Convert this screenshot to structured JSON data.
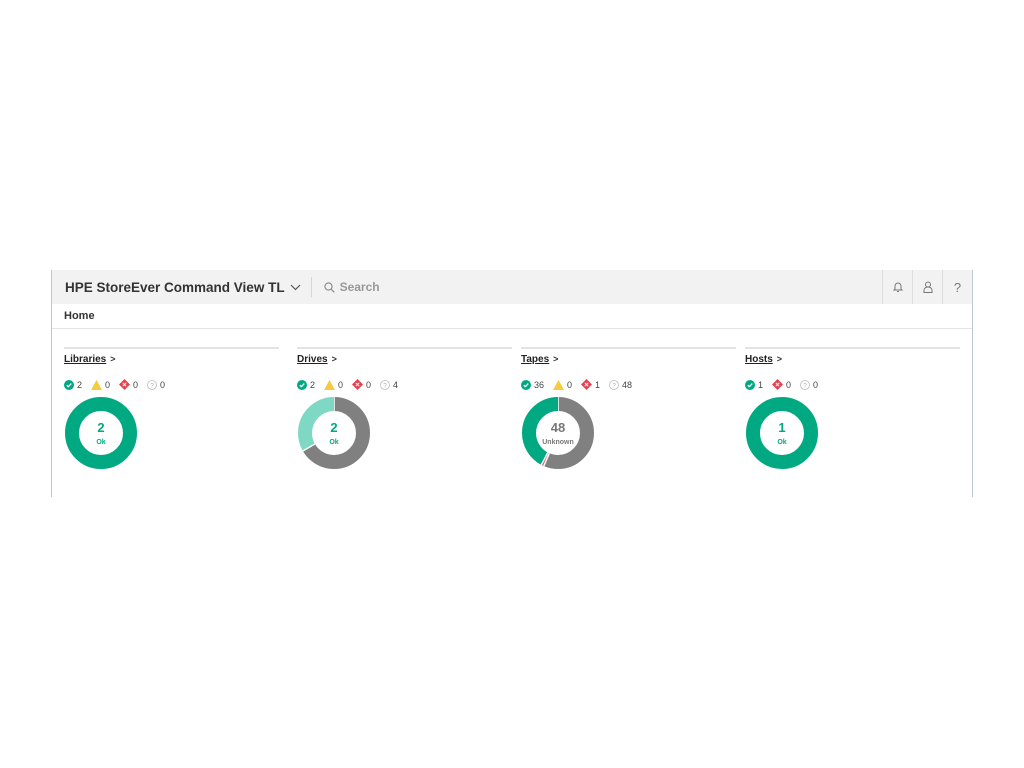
{
  "header": {
    "title": "HPE StoreEver Command View TL",
    "search_placeholder": "Search",
    "icons": [
      "bell-icon",
      "user-icon",
      "help-icon"
    ]
  },
  "breadcrumb": "Home",
  "colors": {
    "ok": "#01a982",
    "ok_light": "#7fd8c3",
    "unknown": "#808080",
    "critical": "#e5404f",
    "warning": "#f6cb3f"
  },
  "cards": [
    {
      "title": "Libraries",
      "arrow": ">",
      "stats": [
        {
          "type": "ok",
          "value": "2"
        },
        {
          "type": "warning",
          "value": "0"
        },
        {
          "type": "critical",
          "value": "0"
        },
        {
          "type": "unknown",
          "value": "0"
        }
      ],
      "donut": {
        "center_value": "2",
        "center_label": "Ok",
        "center_status": "ok",
        "segments": [
          {
            "type": "ok",
            "value": 2
          }
        ]
      }
    },
    {
      "title": "Drives",
      "arrow": ">",
      "stats": [
        {
          "type": "ok",
          "value": "2"
        },
        {
          "type": "warning",
          "value": "0"
        },
        {
          "type": "critical",
          "value": "0"
        },
        {
          "type": "unknown",
          "value": "4"
        }
      ],
      "donut": {
        "center_value": "2",
        "center_label": "Ok",
        "center_status": "ok",
        "segments": [
          {
            "type": "unknown",
            "value": 4
          },
          {
            "type": "ok_light",
            "value": 2
          }
        ]
      }
    },
    {
      "title": "Tapes",
      "arrow": ">",
      "stats": [
        {
          "type": "ok",
          "value": "36"
        },
        {
          "type": "warning",
          "value": "0"
        },
        {
          "type": "critical",
          "value": "1"
        },
        {
          "type": "unknown",
          "value": "48"
        }
      ],
      "donut": {
        "center_value": "48",
        "center_label": "Unknown",
        "center_status": "unknown",
        "segments": [
          {
            "type": "unknown",
            "value": 48
          },
          {
            "type": "critical",
            "value": 1
          },
          {
            "type": "ok",
            "value": 36
          }
        ]
      }
    },
    {
      "title": "Hosts",
      "arrow": ">",
      "stats": [
        {
          "type": "ok",
          "value": "1"
        },
        {
          "type": "critical",
          "value": "0"
        },
        {
          "type": "unknown",
          "value": "0"
        }
      ],
      "donut": {
        "center_value": "1",
        "center_label": "Ok",
        "center_status": "ok",
        "segments": [
          {
            "type": "ok",
            "value": 1
          }
        ]
      }
    }
  ]
}
